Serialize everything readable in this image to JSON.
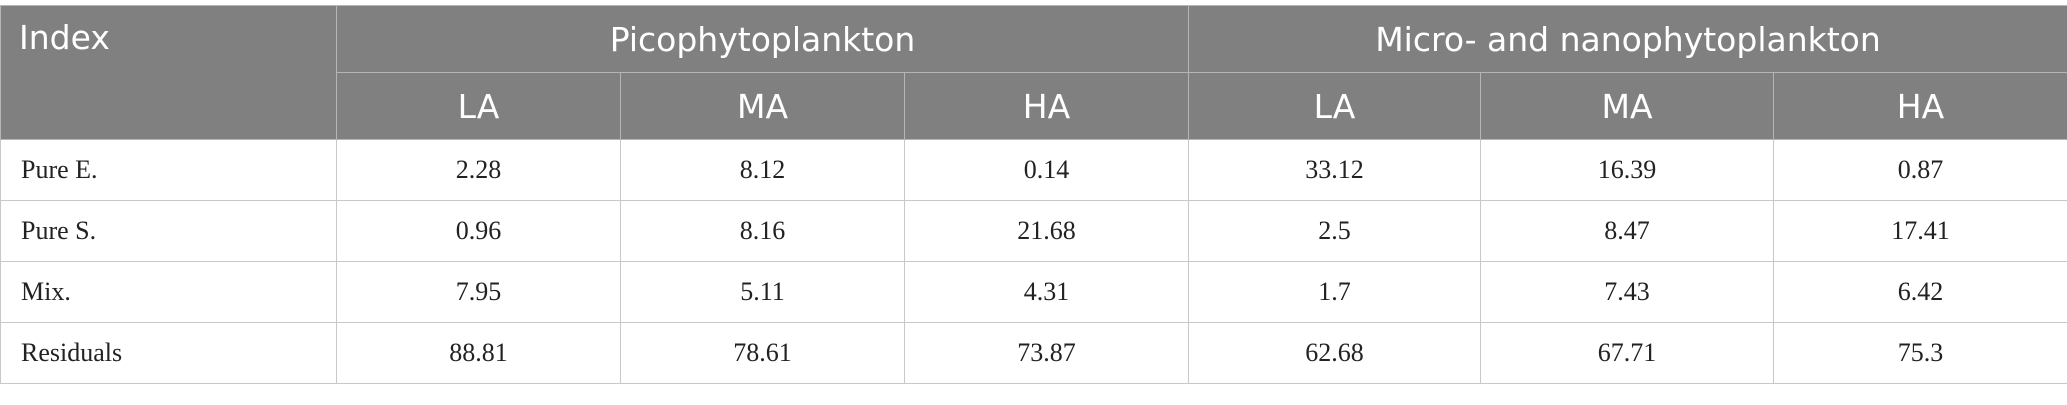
{
  "table": {
    "header": {
      "index": "Index",
      "groups": [
        "Picophytoplankton",
        "Micro- and nanophytoplankton"
      ],
      "subheaders": [
        "LA",
        "MA",
        "HA",
        "LA",
        "MA",
        "HA"
      ]
    },
    "rows": [
      [
        "Pure E.",
        "2.28",
        "8.12",
        "0.14",
        "33.12",
        "16.39",
        "0.87"
      ],
      [
        "Pure S.",
        "0.96",
        "8.16",
        "21.68",
        "2.5",
        "8.47",
        "17.41"
      ],
      [
        "Mix.",
        "7.95",
        "5.11",
        "4.31",
        "1.7",
        "7.43",
        "6.42"
      ],
      [
        "Residuals",
        "88.81",
        "78.61",
        "73.87",
        "62.68",
        "67.71",
        "75.3"
      ]
    ]
  }
}
